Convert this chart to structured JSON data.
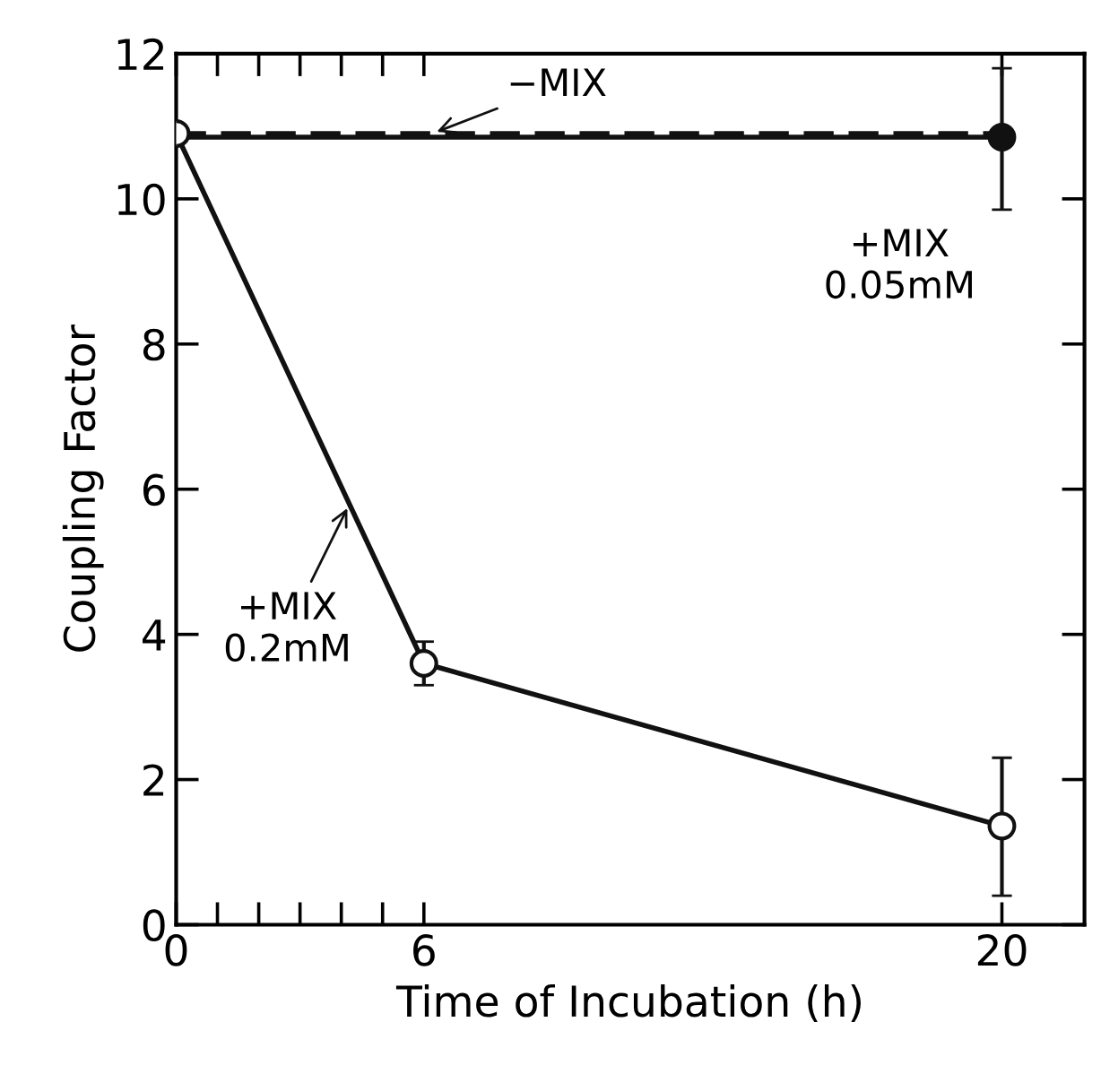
{
  "chart_data": {
    "type": "line",
    "xlabel": "Time of Incubation (h)",
    "ylabel": "Coupling Factor",
    "xlim": [
      0,
      22
    ],
    "ylim": [
      0,
      12
    ],
    "xticks": [
      0,
      {
        "value": 1,
        "label": null
      },
      {
        "value": 2,
        "label": null
      },
      {
        "value": 3,
        "label": null
      },
      {
        "value": 4,
        "label": null
      },
      {
        "value": 5,
        "label": null
      },
      6,
      20
    ],
    "yticks": [
      0,
      2,
      4,
      6,
      8,
      10,
      12
    ],
    "grid": false,
    "legend": false,
    "series": [
      {
        "x": [
          0,
          20
        ],
        "values": [
          10.9,
          10.9
        ],
        "color": "#111111",
        "line_style": "dashed"
      },
      {
        "x": [
          0,
          20
        ],
        "values": [
          10.85,
          10.85
        ],
        "color": "#111111",
        "line_style": "solid"
      },
      {
        "type": "scatter",
        "x": [
          20
        ],
        "values": [
          10.85
        ],
        "errors": [
          [
            9.85,
            11.8
          ]
        ],
        "color": "#111111",
        "marker": "circle"
      },
      {
        "x": [
          0,
          6,
          20
        ],
        "values": [
          10.9,
          3.6,
          1.36
        ],
        "errors": [
          null,
          [
            3.3,
            3.9
          ],
          [
            0.4,
            2.3
          ]
        ],
        "color": "#111111",
        "line_style": "solid",
        "marker": "circle"
      }
    ],
    "annotations": [
      {
        "text": "−MIX",
        "x": 6.2,
        "y": 10.9
      },
      "+MIX\n0.05mM",
      {
        "text": "+MIX\n0.2mM",
        "x": 4.2,
        "y": 5.8
      }
    ]
  }
}
